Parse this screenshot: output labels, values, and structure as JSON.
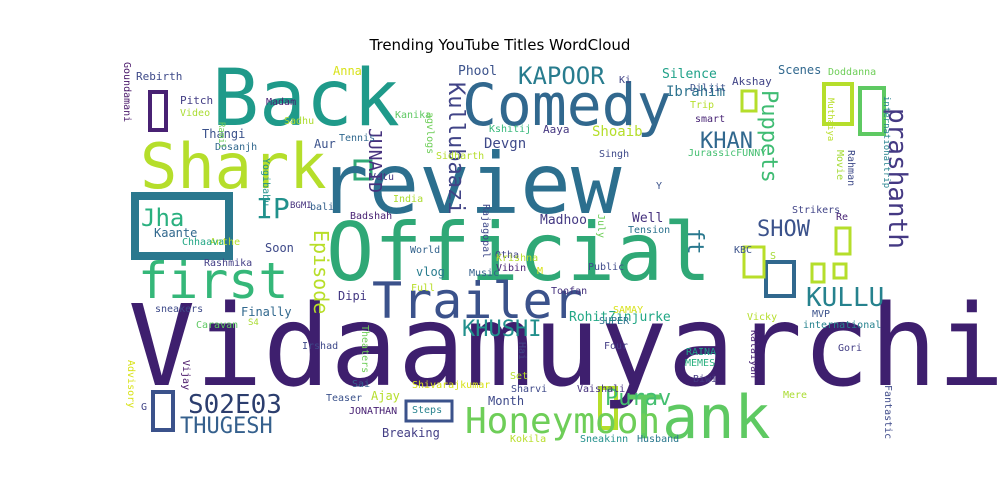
{
  "chart_data": {
    "type": "wordcloud",
    "title": "Trending YouTube Titles WordCloud",
    "words": [
      {
        "text": "Vidaamuyarchi",
        "rank": 1,
        "color": "#3e1f6e"
      },
      {
        "text": "review",
        "rank": 2,
        "color": "#2c6f8e"
      },
      {
        "text": "Official",
        "rank": 3,
        "color": "#2fa876"
      },
      {
        "text": "Back",
        "rank": 4,
        "color": "#1f9a8a"
      },
      {
        "text": "Comedy",
        "rank": 5,
        "color": "#31688e"
      },
      {
        "text": "Shark",
        "rank": 6,
        "color": "#b5de2b"
      },
      {
        "text": "Tank",
        "rank": 7,
        "color": "#5ec962"
      },
      {
        "text": "Trailer",
        "rank": 8,
        "color": "#3b528b"
      },
      {
        "text": "first",
        "rank": 9,
        "color": "#35b779"
      },
      {
        "text": "Honeymoon",
        "rank": 10,
        "color": "#6ece58"
      },
      {
        "text": "S02E03",
        "rank": 11,
        "color": "#2c3e6e"
      },
      {
        "text": "THUGESH",
        "rank": 12,
        "color": "#35608d"
      },
      {
        "text": "KAPOOR",
        "rank": 13,
        "color": "#287c8e"
      },
      {
        "text": "KHUSHI",
        "rank": 14,
        "color": "#22908c"
      },
      {
        "text": "Purav",
        "rank": 15,
        "color": "#44bf70"
      },
      {
        "text": "prashanth",
        "rank": 16,
        "color": "#443983"
      },
      {
        "text": "KULLU",
        "rank": 17,
        "color": "#26828e"
      },
      {
        "text": "Kullubaazi",
        "rank": 18,
        "color": "#414487"
      },
      {
        "text": "Puppets",
        "rank": 19,
        "color": "#3fbc73"
      },
      {
        "text": "Episode",
        "rank": 20,
        "color": "#b8de29"
      },
      {
        "text": "KHAN",
        "rank": 21,
        "color": "#31688e"
      },
      {
        "text": "JUNAID",
        "rank": 22,
        "color": "#46327e"
      },
      {
        "text": "IP",
        "rank": 23,
        "color": "#21918c"
      },
      {
        "text": "Jha",
        "rank": 24,
        "color": "#2ab07f"
      },
      {
        "text": "SHOW",
        "rank": 25,
        "color": "#3b528b"
      },
      {
        "text": "ft",
        "rank": 26,
        "color": "#2a788e"
      },
      {
        "text": "Silence",
        "rank": 27,
        "color": "#1fa188"
      },
      {
        "text": "Ibrahim",
        "rank": 28,
        "color": "#2c728e"
      },
      {
        "text": "Shoaib",
        "rank": 29,
        "color": "#b5de2b"
      },
      {
        "text": "Devgn",
        "rank": 30,
        "color": "#3e4989"
      },
      {
        "text": "RohitZinjurke",
        "rank": 31,
        "color": "#22a785"
      },
      {
        "text": "Phool",
        "rank": 32,
        "color": "#3b528b"
      },
      {
        "text": "Anna",
        "rank": 33,
        "color": "#d8e219"
      },
      {
        "text": "Scenes",
        "rank": 34,
        "color": "#31688e"
      },
      {
        "text": "Akshay",
        "rank": 35,
        "color": "#414487"
      },
      {
        "text": "Doddanna",
        "rank": 36,
        "color": "#6ece58"
      },
      {
        "text": "Rebirth",
        "rank": 37,
        "color": "#3e4a89"
      },
      {
        "text": "Goundamani",
        "rank": 38,
        "color": "#481668"
      },
      {
        "text": "Pitch",
        "rank": 39,
        "color": "#433e85"
      },
      {
        "text": "Video",
        "rank": 40,
        "color": "#aadc32"
      },
      {
        "text": "Madam",
        "rank": 41,
        "color": "#482173"
      },
      {
        "text": "Thangi",
        "rank": 42,
        "color": "#3b528b"
      },
      {
        "text": "Sadhu",
        "rank": 43,
        "color": "#addc30"
      },
      {
        "text": "Tennis",
        "rank": 44,
        "color": "#31688e"
      },
      {
        "text": "Kanika",
        "rank": 45,
        "color": "#5ec962"
      },
      {
        "text": "agvlogs",
        "rank": 46,
        "color": "#6ece58"
      },
      {
        "text": "Kshitij",
        "rank": 47,
        "color": "#35b779"
      },
      {
        "text": "Aaya",
        "rank": 48,
        "color": "#453781"
      },
      {
        "text": "Singh",
        "rank": 49,
        "color": "#3e4989"
      },
      {
        "text": "smart",
        "rank": 50,
        "color": "#482475"
      },
      {
        "text": "Trip",
        "rank": 51,
        "color": "#b5de2b"
      },
      {
        "text": "Diljit",
        "rank": 52,
        "color": "#3b528b"
      },
      {
        "text": "Ki",
        "rank": 53,
        "color": "#414487"
      },
      {
        "text": "Muthaiya",
        "rank": 54,
        "color": "#b8de29"
      },
      {
        "text": "internationaltrip",
        "rank": 55,
        "color": "#26828e"
      },
      {
        "text": "JurassicFUNNY",
        "rank": 56,
        "color": "#44bf70"
      },
      {
        "text": "Dosanjh",
        "rank": 57,
        "color": "#31688e"
      },
      {
        "text": "Ramil",
        "rank": 58,
        "color": "#6ece58"
      },
      {
        "text": "Aur",
        "rank": 59,
        "color": "#3b528b"
      },
      {
        "text": "Sidharth",
        "rank": 60,
        "color": "#b5de2b"
      },
      {
        "text": "Rajagopal",
        "rank": 61,
        "color": "#3e4989"
      },
      {
        "text": "Votu",
        "rank": 62,
        "color": "#443983"
      },
      {
        "text": "Yogibabu",
        "rank": 63,
        "color": "#21918c"
      },
      {
        "text": "BGMI",
        "rank": 64,
        "color": "#46327e"
      },
      {
        "text": "Badshah",
        "rank": 65,
        "color": "#482173"
      },
      {
        "text": "India",
        "rank": 66,
        "color": "#addc30"
      },
      {
        "text": "Movie",
        "rank": 67,
        "color": "#a5db36"
      },
      {
        "text": "Rahman",
        "rank": 68,
        "color": "#3e4a89"
      },
      {
        "text": "Strikers",
        "rank": 69,
        "color": "#414487"
      },
      {
        "text": "Re",
        "rank": 70,
        "color": "#482475"
      },
      {
        "text": "Y",
        "rank": 71,
        "color": "#3b528b"
      },
      {
        "text": "Anthe",
        "rank": 72,
        "color": "#b5de2b"
      },
      {
        "text": "Kaante",
        "rank": 73,
        "color": "#31688e"
      },
      {
        "text": "Chhaava",
        "rank": 74,
        "color": "#22a785"
      },
      {
        "text": "Madhoo",
        "rank": 75,
        "color": "#443983"
      },
      {
        "text": "Well",
        "rank": 76,
        "color": "#46327e"
      },
      {
        "text": "Tension",
        "rank": 77,
        "color": "#2c728e"
      },
      {
        "text": "KBC",
        "rank": 78,
        "color": "#3b528b"
      },
      {
        "text": "Soon",
        "rank": 79,
        "color": "#3e4989"
      },
      {
        "text": "World",
        "rank": 80,
        "color": "#33638d"
      },
      {
        "text": "Otha",
        "rank": 81,
        "color": "#414487"
      },
      {
        "text": "Krishna",
        "rank": 82,
        "color": "#b5de2b"
      },
      {
        "text": "July",
        "rank": 83,
        "color": "#6ece58"
      },
      {
        "text": "Rashmika",
        "rank": 84,
        "color": "#433e85"
      },
      {
        "text": "vlog",
        "rank": 85,
        "color": "#287c8e"
      },
      {
        "text": "Vibin",
        "rank": 86,
        "color": "#482173"
      },
      {
        "text": "Music",
        "rank": 87,
        "color": "#35608d"
      },
      {
        "text": "Public",
        "rank": 88,
        "color": "#3e4989"
      },
      {
        "text": "S",
        "rank": 89,
        "color": "#a5db36"
      },
      {
        "text": "M",
        "rank": 90,
        "color": "#d8e219"
      },
      {
        "text": "Dipi",
        "rank": 91,
        "color": "#443983"
      },
      {
        "text": "Full",
        "rank": 92,
        "color": "#b8de29"
      },
      {
        "text": "Toofan",
        "rank": 93,
        "color": "#46327e"
      },
      {
        "text": "SUPER",
        "rank": 94,
        "color": "#2c728e"
      },
      {
        "text": "Finally",
        "rank": 95,
        "color": "#31688e"
      },
      {
        "text": "sneakers",
        "rank": 96,
        "color": "#3e4a89"
      },
      {
        "text": "Caravan",
        "rank": 97,
        "color": "#5ec962"
      },
      {
        "text": "S4",
        "rank": 98,
        "color": "#aadc32"
      },
      {
        "text": "SAMAY",
        "rank": 99,
        "color": "#d8e219"
      },
      {
        "text": "Vicky",
        "rank": 100,
        "color": "#b5de2b"
      },
      {
        "text": "MVP",
        "rank": 101,
        "color": "#3b528b"
      },
      {
        "text": "international",
        "rank": 102,
        "color": "#26828e"
      },
      {
        "text": "Irshad",
        "rank": 103,
        "color": "#3e4989"
      },
      {
        "text": "Theaters",
        "rank": 104,
        "color": "#6ece58"
      },
      {
        "text": "Hai",
        "rank": 105,
        "color": "#414487"
      },
      {
        "text": "Four",
        "rank": 106,
        "color": "#433e85"
      },
      {
        "text": "RAINA",
        "rank": 107,
        "color": "#1fa188"
      },
      {
        "text": "MEMES",
        "rank": 108,
        "color": "#2ab07f"
      },
      {
        "text": "Kalaiyan",
        "rank": 109,
        "color": "#482475"
      },
      {
        "text": "Gori",
        "rank": 110,
        "color": "#433e85"
      },
      {
        "text": "Vijay",
        "rank": 111,
        "color": "#481668"
      },
      {
        "text": "Set",
        "rank": 112,
        "color": "#b5de2b"
      },
      {
        "text": "Sai",
        "rank": 113,
        "color": "#35608d"
      },
      {
        "text": "Shivarajkumar",
        "rank": 114,
        "color": "#d8e219"
      },
      {
        "text": "Sharvi",
        "rank": 115,
        "color": "#3e4989"
      },
      {
        "text": "Biwi",
        "rank": 116,
        "color": "#443983"
      },
      {
        "text": "Mere",
        "rank": 117,
        "color": "#aadc32"
      },
      {
        "text": "Advisory",
        "rank": 118,
        "color": "#d8e219"
      },
      {
        "text": "G",
        "rank": 119,
        "color": "#414487"
      },
      {
        "text": "Teaser",
        "rank": 120,
        "color": "#3b528b"
      },
      {
        "text": "JONATHAN",
        "rank": 121,
        "color": "#482173"
      },
      {
        "text": "Steps",
        "rank": 122,
        "color": "#26828e"
      },
      {
        "text": "Vaishali",
        "rank": 123,
        "color": "#46327e"
      },
      {
        "text": "Month",
        "rank": 124,
        "color": "#3e4989"
      },
      {
        "text": "Ajay",
        "rank": 125,
        "color": "#b5de2b"
      },
      {
        "text": "Breaking",
        "rank": 126,
        "color": "#433e85"
      },
      {
        "text": "Kokila",
        "rank": 127,
        "color": "#b8de29"
      },
      {
        "text": "Sneakinn",
        "rank": 128,
        "color": "#22908c"
      },
      {
        "text": "Husband",
        "rank": 129,
        "color": "#2a788e"
      },
      {
        "text": "Fantastic",
        "rank": 130,
        "color": "#3e4a89"
      },
      {
        "text": "bali",
        "rank": 131,
        "color": "#35608d"
      }
    ]
  }
}
